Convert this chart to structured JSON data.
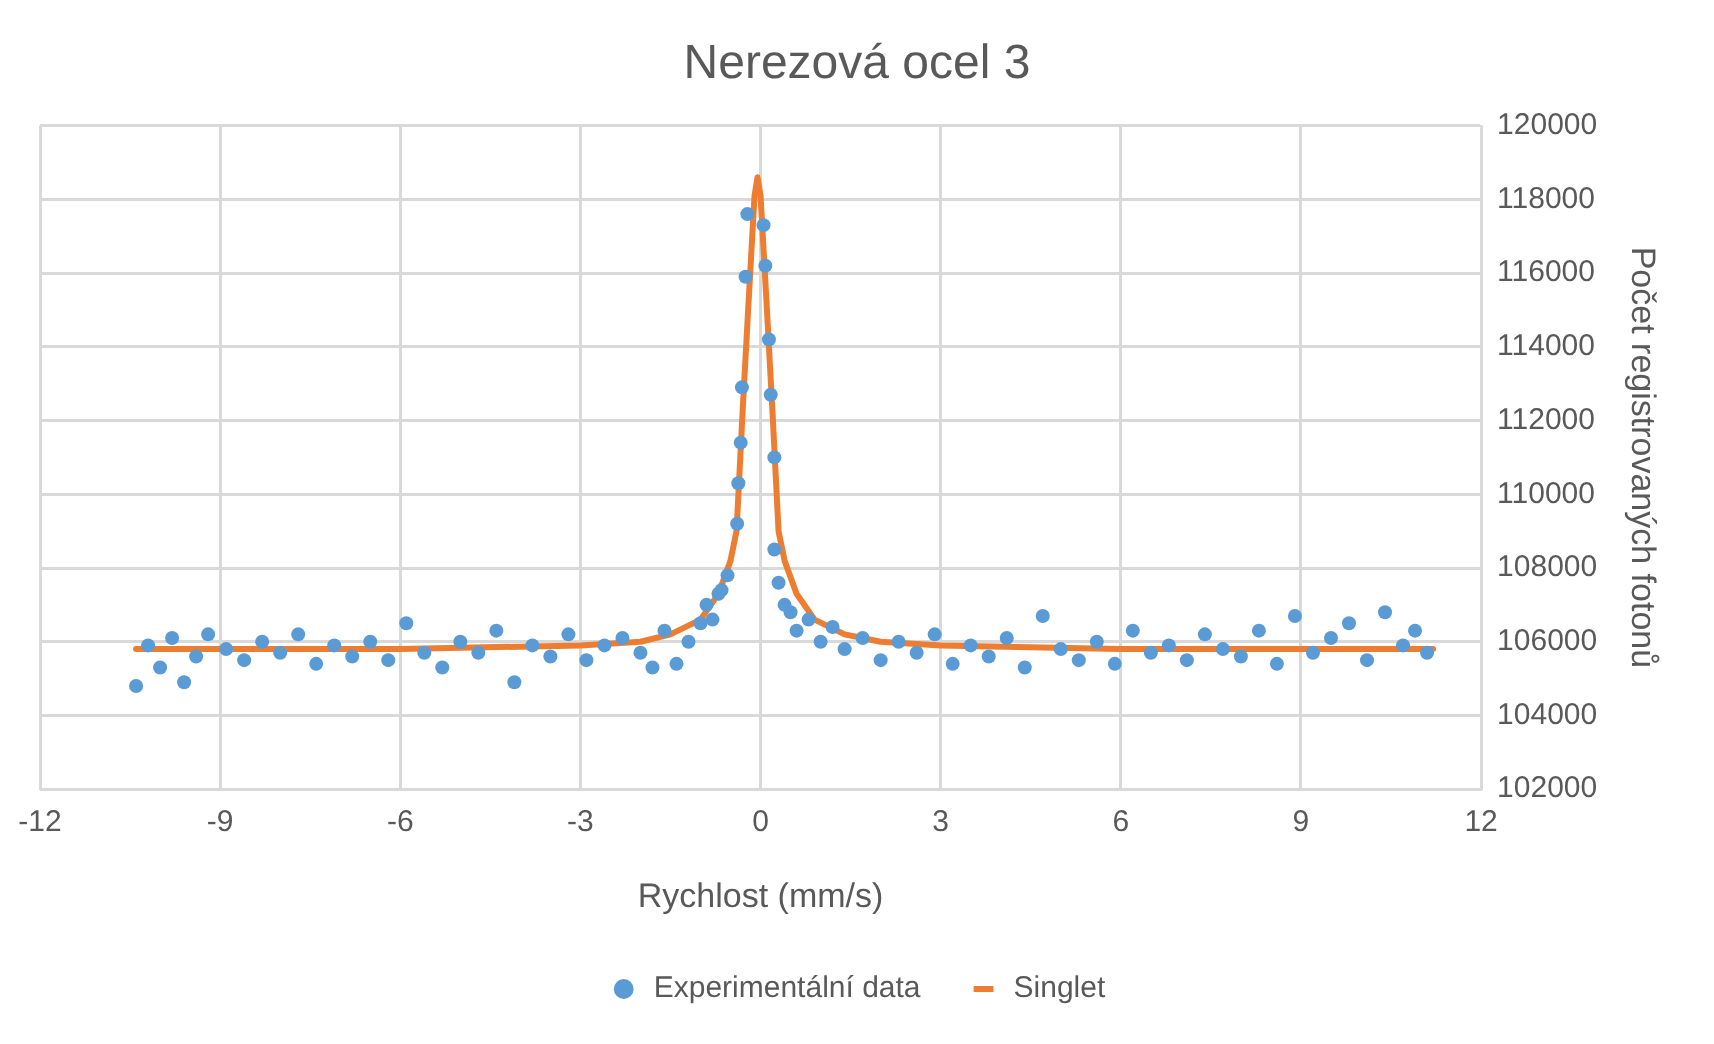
{
  "chart_data": {
    "type": "scatter",
    "title": "Nerezová ocel 3",
    "xlabel": "Rychlost (mm/s)",
    "ylabel": "Počet registrovaných fotonů",
    "xlim": [
      -12,
      12
    ],
    "xticks": [
      -12,
      -9,
      -6,
      -3,
      0,
      3,
      6,
      9,
      12
    ],
    "ylim": [
      102000,
      120000
    ],
    "yticks": [
      102000,
      104000,
      106000,
      108000,
      110000,
      112000,
      114000,
      116000,
      118000,
      120000
    ],
    "grid": true,
    "legend": "bottom",
    "line_style": "solid",
    "series": [
      {
        "name": "Experimentální data",
        "marker": "circle",
        "color": "#5b9bd5",
        "x": [
          -10.4,
          -10.2,
          -10.0,
          -9.8,
          -9.6,
          -9.4,
          -9.2,
          -8.9,
          -8.6,
          -8.3,
          -8.0,
          -7.7,
          -7.4,
          -7.1,
          -6.8,
          -6.5,
          -6.2,
          -5.9,
          -5.6,
          -5.3,
          -5.0,
          -4.7,
          -4.4,
          -4.1,
          -3.8,
          -3.5,
          -3.2,
          -2.9,
          -2.6,
          -2.3,
          -2.0,
          -1.8,
          -1.6,
          -1.4,
          -1.2,
          -1.0,
          -0.9,
          -0.8,
          -0.7,
          -0.65,
          -0.55,
          -0.39,
          -0.37,
          -0.33,
          -0.31,
          -0.25,
          -0.22,
          0.05,
          0.08,
          0.14,
          0.17,
          0.23,
          0.23,
          0.3,
          0.4,
          0.5,
          0.6,
          0.8,
          1.0,
          1.2,
          1.4,
          1.7,
          2.0,
          2.3,
          2.6,
          2.9,
          3.2,
          3.5,
          3.8,
          4.1,
          4.4,
          4.7,
          5.0,
          5.3,
          5.6,
          5.9,
          6.2,
          6.5,
          6.8,
          7.1,
          7.4,
          7.7,
          8.0,
          8.3,
          8.6,
          8.9,
          9.2,
          9.5,
          9.8,
          10.1,
          10.4,
          10.7,
          10.9,
          11.1
        ],
        "values": [
          104800,
          105900,
          105300,
          106100,
          104900,
          105600,
          106200,
          105800,
          105500,
          106000,
          105700,
          106200,
          105400,
          105900,
          105600,
          106000,
          105500,
          106500,
          105700,
          105300,
          106000,
          105700,
          106300,
          104900,
          105900,
          105600,
          106200,
          105500,
          105900,
          106100,
          105700,
          105300,
          106300,
          105400,
          106000,
          106500,
          107000,
          106600,
          107300,
          107400,
          107800,
          109200,
          110300,
          111400,
          112900,
          115900,
          117600,
          117300,
          116200,
          114200,
          112700,
          111000,
          108500,
          107600,
          107000,
          106800,
          106300,
          106600,
          106000,
          106400,
          105800,
          106100,
          105500,
          106000,
          105700,
          106200,
          105400,
          105900,
          105600,
          106100,
          105300,
          106700,
          105800,
          105500,
          106000,
          105400,
          106300,
          105700,
          105900,
          105500,
          106200,
          105800,
          105600,
          106300,
          105400,
          106700,
          105700,
          106100,
          106500,
          105500,
          106800,
          105900,
          106300,
          105700
        ]
      },
      {
        "name": "Singlet",
        "type": "line",
        "color": "#ed7d31",
        "x": [
          -10.4,
          -6,
          -3,
          -2,
          -1.5,
          -1,
          -0.7,
          -0.5,
          -0.4,
          -0.3,
          -0.2,
          -0.1,
          -0.05,
          0,
          0.1,
          0.2,
          0.3,
          0.4,
          0.6,
          0.9,
          1.4,
          2,
          3,
          6,
          11.2
        ],
        "values": [
          105800,
          105800,
          105900,
          106000,
          106200,
          106600,
          107300,
          108200,
          109000,
          112200,
          115200,
          118100,
          118600,
          118100,
          115200,
          112200,
          109000,
          108200,
          107300,
          106600,
          106200,
          106000,
          105900,
          105800,
          105800
        ]
      }
    ]
  }
}
